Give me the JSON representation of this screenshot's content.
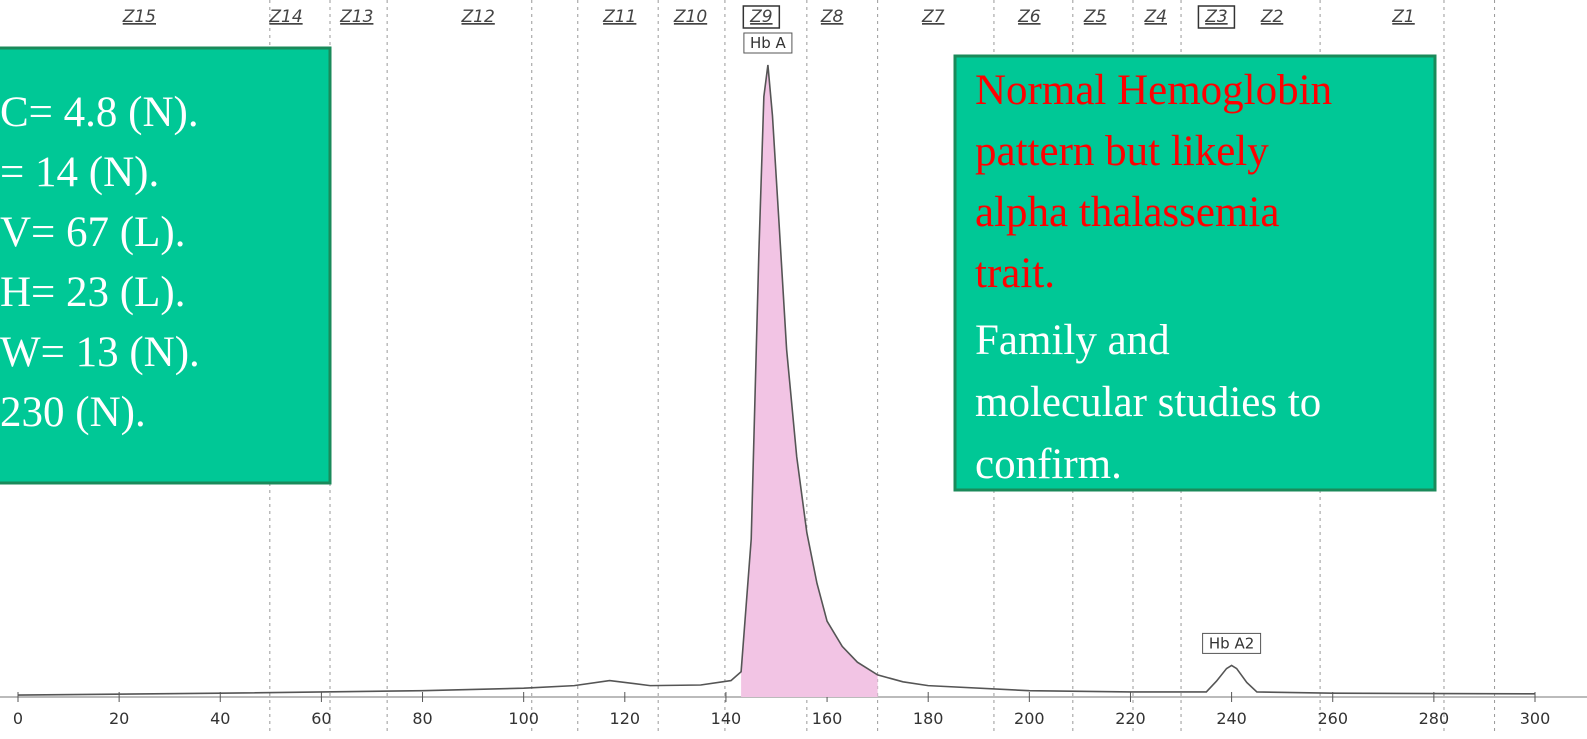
{
  "chart_data": {
    "type": "line",
    "x": [
      0,
      40,
      80,
      100,
      110,
      117,
      125,
      135,
      141,
      143,
      145,
      146.5,
      147.5,
      148.3,
      149.2,
      150.5,
      152,
      154,
      156,
      158,
      160,
      163,
      166,
      170,
      175,
      180,
      200,
      220,
      235,
      237,
      239,
      240,
      241,
      243,
      245,
      260,
      300
    ],
    "values": [
      0.3,
      0.6,
      1,
      1.4,
      1.8,
      2.6,
      1.8,
      1.9,
      2.6,
      4,
      25,
      70,
      95,
      100,
      92,
      75,
      55,
      38,
      26,
      18,
      12,
      8,
      5.5,
      3.5,
      2.4,
      1.8,
      1,
      0.8,
      0.8,
      2.5,
      4.5,
      5,
      4.5,
      2.3,
      0.8,
      0.6,
      0.5
    ],
    "fill_range": [
      143,
      172
    ],
    "xlim": [
      0,
      300
    ],
    "ylim": [
      0,
      100
    ],
    "xticks": [
      0,
      20,
      40,
      60,
      80,
      100,
      120,
      140,
      160,
      180,
      200,
      220,
      240,
      260,
      280,
      300
    ],
    "zones": [
      "Z15",
      "Z14",
      "Z13",
      "Z12",
      "Z11",
      "Z10",
      "Z9",
      "Z8",
      "Z7",
      "Z6",
      "Z5",
      "Z4",
      "Z3",
      "Z2",
      "Z1"
    ],
    "zone_x": [
      24,
      53,
      67,
      91,
      119,
      133,
      147,
      161,
      181,
      200,
      213,
      225,
      237,
      248,
      274
    ],
    "boxed_zones": [
      "Z9",
      "Z3"
    ],
    "zone_boundaries": [
      49.8,
      61.7,
      73,
      101.6,
      110.7,
      126.6,
      139.8,
      156,
      170,
      193,
      208.6,
      220.5,
      230,
      257.5,
      282,
      292
    ],
    "peaks": [
      {
        "label": "Hb A",
        "x": 148.3,
        "y": 100
      },
      {
        "label": "Hb A2",
        "x": 240,
        "y": 5
      }
    ],
    "color": "#555",
    "fill_color": "#f2c4e4"
  },
  "left_box": {
    "lines": [
      "C= 4.8 (N).",
      "= 14 (N).",
      "V= 67 (L).",
      "H= 23 (L).",
      "W= 13 (N).",
      "230 (N)."
    ]
  },
  "right_box": {
    "red_lines": [
      "Normal Hemoglobin",
      "pattern but likely",
      "alpha thalassemia",
      "trait."
    ],
    "white_lines": [
      "Family and",
      "molecular studies to",
      "confirm."
    ]
  }
}
